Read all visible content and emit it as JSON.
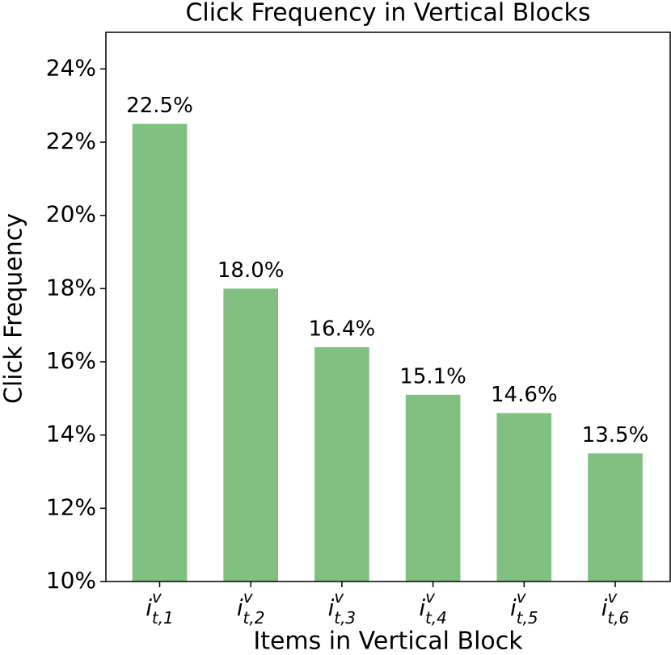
{
  "chart_data": {
    "type": "bar",
    "title": "Click Frequency in Vertical Blocks",
    "x_label": "Items in Vertical Block",
    "y_label": "Click Frequency",
    "categories": [
      "i^v_{t,1}",
      "i^v_{t,2}",
      "i^v_{t,3}",
      "i^v_{t,4}",
      "i^v_{t,5}",
      "i^v_{t,6}"
    ],
    "values": [
      22.5,
      18.0,
      16.4,
      15.1,
      14.6,
      13.5
    ],
    "value_labels": [
      "22.5%",
      "18.0%",
      "16.4%",
      "15.1%",
      "14.6%",
      "13.5%"
    ],
    "color": "#80c080",
    "ylim": [
      10,
      25
    ],
    "yticks": [
      {
        "value": 10,
        "label": "10%"
      },
      {
        "value": 12,
        "label": "12%"
      },
      {
        "value": 14,
        "label": "14%"
      },
      {
        "value": 16,
        "label": "16%"
      },
      {
        "value": 18,
        "label": "18%"
      },
      {
        "value": 20,
        "label": "20%"
      },
      {
        "value": 22,
        "label": "22%"
      },
      {
        "value": 24,
        "label": "24%"
      }
    ],
    "grid": false
  }
}
